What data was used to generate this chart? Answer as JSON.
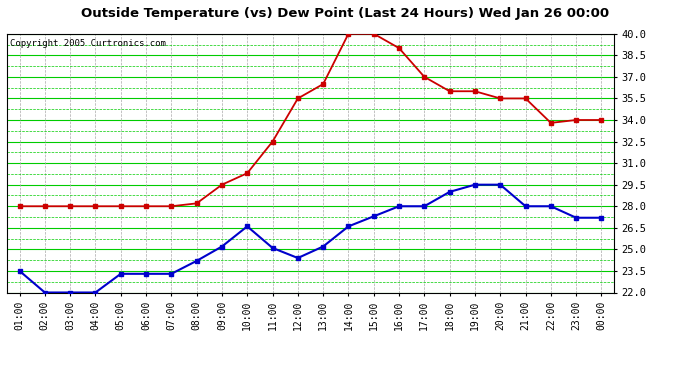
{
  "title": "Outside Temperature (vs) Dew Point (Last 24 Hours) Wed Jan 26 00:00",
  "copyright": "Copyright 2005 Curtronics.com",
  "x_labels": [
    "01:00",
    "02:00",
    "03:00",
    "04:00",
    "05:00",
    "06:00",
    "07:00",
    "08:00",
    "09:00",
    "10:00",
    "11:00",
    "12:00",
    "13:00",
    "14:00",
    "15:00",
    "16:00",
    "17:00",
    "18:00",
    "19:00",
    "20:00",
    "21:00",
    "22:00",
    "23:00",
    "00:00"
  ],
  "temp_data": [
    28.0,
    28.0,
    28.0,
    28.0,
    28.0,
    28.0,
    28.0,
    28.2,
    29.5,
    30.3,
    32.5,
    35.5,
    36.5,
    40.0,
    40.0,
    39.0,
    37.0,
    36.0,
    36.0,
    35.5,
    35.5,
    33.8,
    34.0,
    34.0
  ],
  "dew_data": [
    23.5,
    22.0,
    22.0,
    22.0,
    23.3,
    23.3,
    23.3,
    24.2,
    25.2,
    26.6,
    25.1,
    24.4,
    25.2,
    26.6,
    27.3,
    28.0,
    28.0,
    29.0,
    29.5,
    29.5,
    28.0,
    28.0,
    27.2,
    27.2
  ],
  "y_min": 22.0,
  "y_max": 40.0,
  "y_ticks": [
    22.0,
    23.5,
    25.0,
    26.5,
    28.0,
    29.5,
    31.0,
    32.5,
    34.0,
    35.5,
    37.0,
    38.5,
    40.0
  ],
  "temp_color": "#cc0000",
  "dew_color": "#0000cc",
  "plot_bg_color": "#ffffff",
  "fig_bg_color": "#ffffff",
  "grid_h_color": "#00cc00",
  "grid_v_color": "#aaaaaa",
  "title_color": "#000000"
}
